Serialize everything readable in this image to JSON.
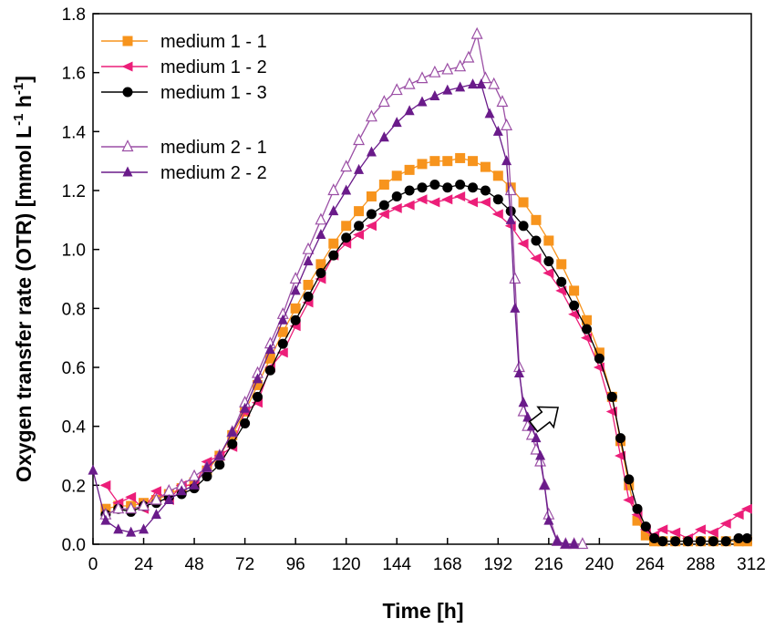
{
  "chart_data": {
    "type": "line",
    "xlabel": "Time   [h]",
    "ylabel": "Oxygen transfer rate (OTR)   [mmol L^-1 h^-1]",
    "ylabel_parts": {
      "main": "Oxygen transfer rate (OTR)   [mmol L",
      "sup1": "-1",
      "mid": " h",
      "sup2": "-1",
      "end": "]"
    },
    "xlim": [
      0,
      312
    ],
    "ylim": [
      0,
      1.8
    ],
    "xticks": [
      "0",
      "24",
      "48",
      "72",
      "96",
      "120",
      "144",
      "168",
      "192",
      "216",
      "240",
      "264",
      "288",
      "312"
    ],
    "yticks": [
      "0.0",
      "0.2",
      "0.4",
      "0.6",
      "0.8",
      "1.0",
      "1.2",
      "1.4",
      "1.6",
      "1.8"
    ],
    "grid": false,
    "legend_position": "top-left",
    "annotation": "arrow-pointing-to-medium-2-drop",
    "series": [
      {
        "name": "medium 1 - 1",
        "color": "#f7941d",
        "marker": "square",
        "x": [
          6,
          12,
          18,
          24,
          30,
          36,
          42,
          48,
          54,
          60,
          66,
          72,
          78,
          84,
          90,
          96,
          102,
          108,
          114,
          120,
          126,
          132,
          138,
          144,
          150,
          156,
          162,
          168,
          174,
          180,
          186,
          192,
          198,
          204,
          210,
          216,
          222,
          228,
          234,
          240,
          246,
          250,
          254,
          258,
          262,
          266,
          270,
          276,
          282,
          288,
          294,
          300,
          306,
          310
        ],
        "y": [
          0.12,
          0.13,
          0.13,
          0.14,
          0.15,
          0.17,
          0.19,
          0.21,
          0.25,
          0.3,
          0.37,
          0.45,
          0.54,
          0.63,
          0.72,
          0.8,
          0.88,
          0.95,
          1.02,
          1.08,
          1.13,
          1.18,
          1.22,
          1.25,
          1.27,
          1.29,
          1.3,
          1.3,
          1.31,
          1.3,
          1.28,
          1.25,
          1.21,
          1.16,
          1.1,
          1.03,
          0.95,
          0.86,
          0.76,
          0.65,
          0.5,
          0.35,
          0.2,
          0.08,
          0.03,
          0.01,
          0.01,
          0.01,
          0.01,
          0.01,
          0.01,
          0.01,
          0.01,
          0.01
        ]
      },
      {
        "name": "medium 1 - 2",
        "color": "#ec1e79",
        "marker": "triangle-left",
        "x": [
          6,
          12,
          18,
          24,
          30,
          36,
          42,
          48,
          54,
          60,
          66,
          72,
          78,
          84,
          90,
          96,
          102,
          108,
          114,
          120,
          126,
          132,
          138,
          144,
          150,
          156,
          162,
          168,
          174,
          180,
          186,
          192,
          198,
          204,
          210,
          216,
          222,
          228,
          234,
          240,
          246,
          250,
          254,
          258,
          262,
          266,
          270,
          276,
          282,
          288,
          294,
          300,
          306,
          310
        ],
        "y": [
          0.2,
          0.14,
          0.16,
          0.12,
          0.18,
          0.15,
          0.2,
          0.2,
          0.28,
          0.3,
          0.33,
          0.45,
          0.48,
          0.6,
          0.65,
          0.74,
          0.82,
          0.9,
          0.98,
          1.02,
          1.05,
          1.08,
          1.12,
          1.14,
          1.15,
          1.17,
          1.16,
          1.17,
          1.18,
          1.16,
          1.16,
          1.12,
          1.08,
          1.02,
          0.97,
          0.92,
          0.86,
          0.78,
          0.7,
          0.6,
          0.45,
          0.3,
          0.15,
          0.1,
          0.05,
          0.03,
          0.05,
          0.04,
          0.02,
          0.05,
          0.04,
          0.07,
          0.1,
          0.12
        ]
      },
      {
        "name": "medium 1 - 3",
        "color": "#000000",
        "marker": "circle",
        "x": [
          6,
          12,
          18,
          24,
          30,
          36,
          42,
          48,
          54,
          60,
          66,
          72,
          78,
          84,
          90,
          96,
          102,
          108,
          114,
          120,
          126,
          132,
          138,
          144,
          150,
          156,
          162,
          168,
          174,
          180,
          186,
          192,
          198,
          204,
          210,
          216,
          222,
          228,
          234,
          240,
          246,
          250,
          254,
          258,
          262,
          266,
          270,
          276,
          282,
          288,
          294,
          300,
          306,
          310
        ],
        "y": [
          0.1,
          0.12,
          0.11,
          0.13,
          0.14,
          0.16,
          0.17,
          0.19,
          0.23,
          0.27,
          0.34,
          0.41,
          0.5,
          0.59,
          0.68,
          0.76,
          0.84,
          0.92,
          0.98,
          1.04,
          1.08,
          1.12,
          1.15,
          1.18,
          1.2,
          1.21,
          1.22,
          1.21,
          1.22,
          1.21,
          1.2,
          1.17,
          1.13,
          1.08,
          1.03,
          0.96,
          0.89,
          0.81,
          0.73,
          0.63,
          0.5,
          0.36,
          0.22,
          0.12,
          0.06,
          0.02,
          0.01,
          0.01,
          0.01,
          0.01,
          0.01,
          0.01,
          0.02,
          0.02
        ]
      },
      {
        "name": "medium 2 - 1",
        "color": "#9b4fa5",
        "marker": "triangle-up-open",
        "x": [
          6,
          12,
          18,
          24,
          30,
          36,
          42,
          48,
          54,
          60,
          66,
          72,
          78,
          84,
          90,
          96,
          102,
          108,
          114,
          120,
          126,
          132,
          138,
          144,
          150,
          156,
          162,
          168,
          174,
          178,
          182,
          186,
          190,
          194,
          196,
          198,
          200,
          202,
          204,
          206,
          208,
          210,
          212,
          214,
          216,
          220,
          224,
          228,
          232
        ],
        "y": [
          0.1,
          0.12,
          0.12,
          0.13,
          0.15,
          0.18,
          0.2,
          0.23,
          0.26,
          0.3,
          0.38,
          0.48,
          0.58,
          0.68,
          0.78,
          0.9,
          1.0,
          1.1,
          1.2,
          1.28,
          1.37,
          1.45,
          1.5,
          1.54,
          1.56,
          1.58,
          1.6,
          1.61,
          1.62,
          1.65,
          1.73,
          1.58,
          1.56,
          1.5,
          1.42,
          1.2,
          0.9,
          0.6,
          0.45,
          0.4,
          0.37,
          0.32,
          0.28,
          0.2,
          0.1,
          0.01,
          0.0,
          0.0,
          0.0
        ]
      },
      {
        "name": "medium 2 - 2",
        "color": "#6a1b8a",
        "marker": "triangle-up-filled",
        "x": [
          0,
          6,
          12,
          18,
          24,
          30,
          36,
          42,
          48,
          54,
          60,
          66,
          72,
          78,
          84,
          90,
          96,
          102,
          108,
          114,
          120,
          126,
          132,
          138,
          144,
          150,
          156,
          162,
          168,
          174,
          180,
          184,
          188,
          192,
          196,
          198,
          200,
          202,
          204,
          206,
          208,
          210,
          212,
          214,
          216,
          220,
          224,
          228
        ],
        "y": [
          0.25,
          0.08,
          0.05,
          0.04,
          0.05,
          0.1,
          0.15,
          0.18,
          0.2,
          0.26,
          0.3,
          0.38,
          0.46,
          0.56,
          0.66,
          0.76,
          0.86,
          0.96,
          1.05,
          1.13,
          1.2,
          1.27,
          1.33,
          1.38,
          1.43,
          1.47,
          1.5,
          1.52,
          1.54,
          1.55,
          1.56,
          1.56,
          1.46,
          1.4,
          1.3,
          1.1,
          0.8,
          0.58,
          0.48,
          0.43,
          0.4,
          0.36,
          0.3,
          0.2,
          0.08,
          0.01,
          0.0,
          0.0
        ]
      }
    ]
  }
}
